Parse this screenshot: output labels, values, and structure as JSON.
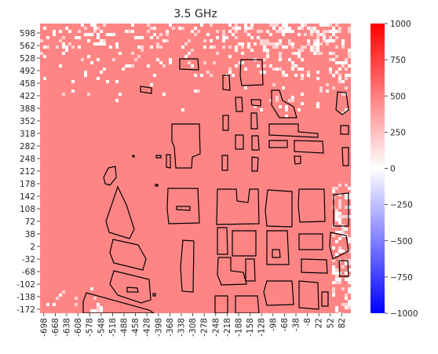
{
  "chart_data": {
    "type": "heatmap",
    "title": "3.5 GHz",
    "xlabel": "",
    "ylabel": "",
    "x_ticks": [
      "-698",
      "-668",
      "-638",
      "-608",
      "-578",
      "-548",
      "-518",
      "-488",
      "-458",
      "-428",
      "-398",
      "-368",
      "-338",
      "-308",
      "-278",
      "-248",
      "-218",
      "-188",
      "-158",
      "-128",
      "-98",
      "-68",
      "-38",
      "-8",
      "22",
      "52",
      "82"
    ],
    "y_ticks": [
      "598",
      "562",
      "528",
      "492",
      "458",
      "422",
      "388",
      "352",
      "318",
      "282",
      "248",
      "212",
      "178",
      "142",
      "108",
      "72",
      "38",
      "2",
      "-32",
      "-68",
      "-102",
      "-138",
      "-172"
    ],
    "x_range": [
      -698,
      92
    ],
    "y_range": [
      -172,
      598
    ],
    "colorbar": {
      "min": -1000,
      "max": 1000,
      "ticks": [
        "1000",
        "750",
        "500",
        "250",
        "0",
        "−250",
        "−500",
        "−750",
        "−1000"
      ],
      "colors": [
        "#0000ff",
        "#ffffff",
        "#ff0000"
      ]
    },
    "dominant_value": 450,
    "dominant_color": "#ff8585",
    "building_outline_color": "#000000",
    "grid": false
  }
}
